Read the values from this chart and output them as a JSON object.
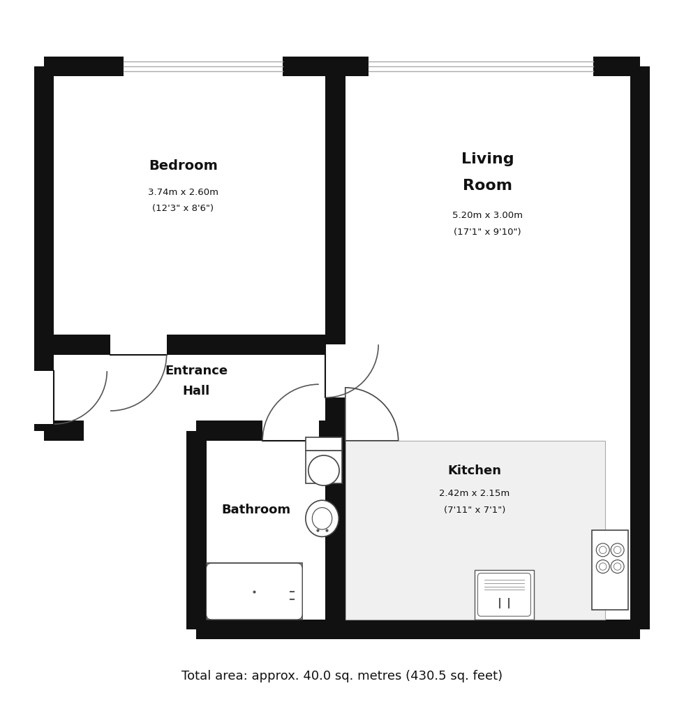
{
  "title": "Total area: approx. 40.0 sq. metres (430.5 sq. feet)",
  "bg_color": "#ffffff",
  "wall_color": "#111111",
  "rooms": {
    "bedroom": {
      "label": "Bedroom",
      "sub1": "3.74m x 2.60m",
      "sub2": "(12'3\" x 8'6\")"
    },
    "living_room": {
      "label1": "Living",
      "label2": "Room",
      "sub1": "5.20m x 3.00m",
      "sub2": "(17'1\" x 9'10\")"
    },
    "entrance_hall": {
      "label1": "Entrance",
      "label2": "Hall"
    },
    "bathroom": {
      "label": "Bathroom"
    },
    "kitchen": {
      "label": "Kitchen",
      "sub1": "2.42m x 2.15m",
      "sub2": "(7'11\" x 7'1\")"
    }
  }
}
